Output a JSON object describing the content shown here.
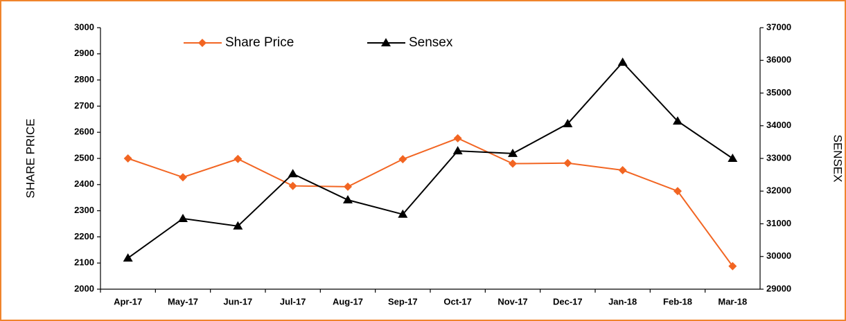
{
  "chart_data": {
    "type": "line",
    "categories": [
      "Apr-17",
      "May-17",
      "Jun-17",
      "Jul-17",
      "Aug-17",
      "Sep-17",
      "Oct-17",
      "Nov-17",
      "Dec-17",
      "Jan-18",
      "Feb-18",
      "Mar-18"
    ],
    "series": [
      {
        "name": "Share Price",
        "color": "#f26522",
        "marker": "diamond",
        "values": [
          2500,
          2428,
          2498,
          2395,
          2392,
          2497,
          2577,
          2480,
          2482,
          2455,
          2375,
          2088
        ]
      },
      {
        "name": "Sensex",
        "color": "#000000",
        "marker": "triangle",
        "axis": "y2",
        "values": [
          29950,
          31160,
          30930,
          32530,
          31730,
          31290,
          33230,
          33150,
          34060,
          35940,
          34140,
          33000
        ]
      }
    ],
    "y_label": "SHARE PRICE",
    "y2_label": "SENSEX",
    "ylim": [
      2000,
      3000
    ],
    "yticks": [
      2000,
      2100,
      2200,
      2300,
      2400,
      2500,
      2600,
      2700,
      2800,
      2900,
      3000
    ],
    "y2lim": [
      29000,
      37000
    ],
    "y2ticks": [
      29000,
      30000,
      31000,
      32000,
      33000,
      34000,
      35000,
      36000,
      37000
    ],
    "grid": false,
    "legend": "top"
  }
}
